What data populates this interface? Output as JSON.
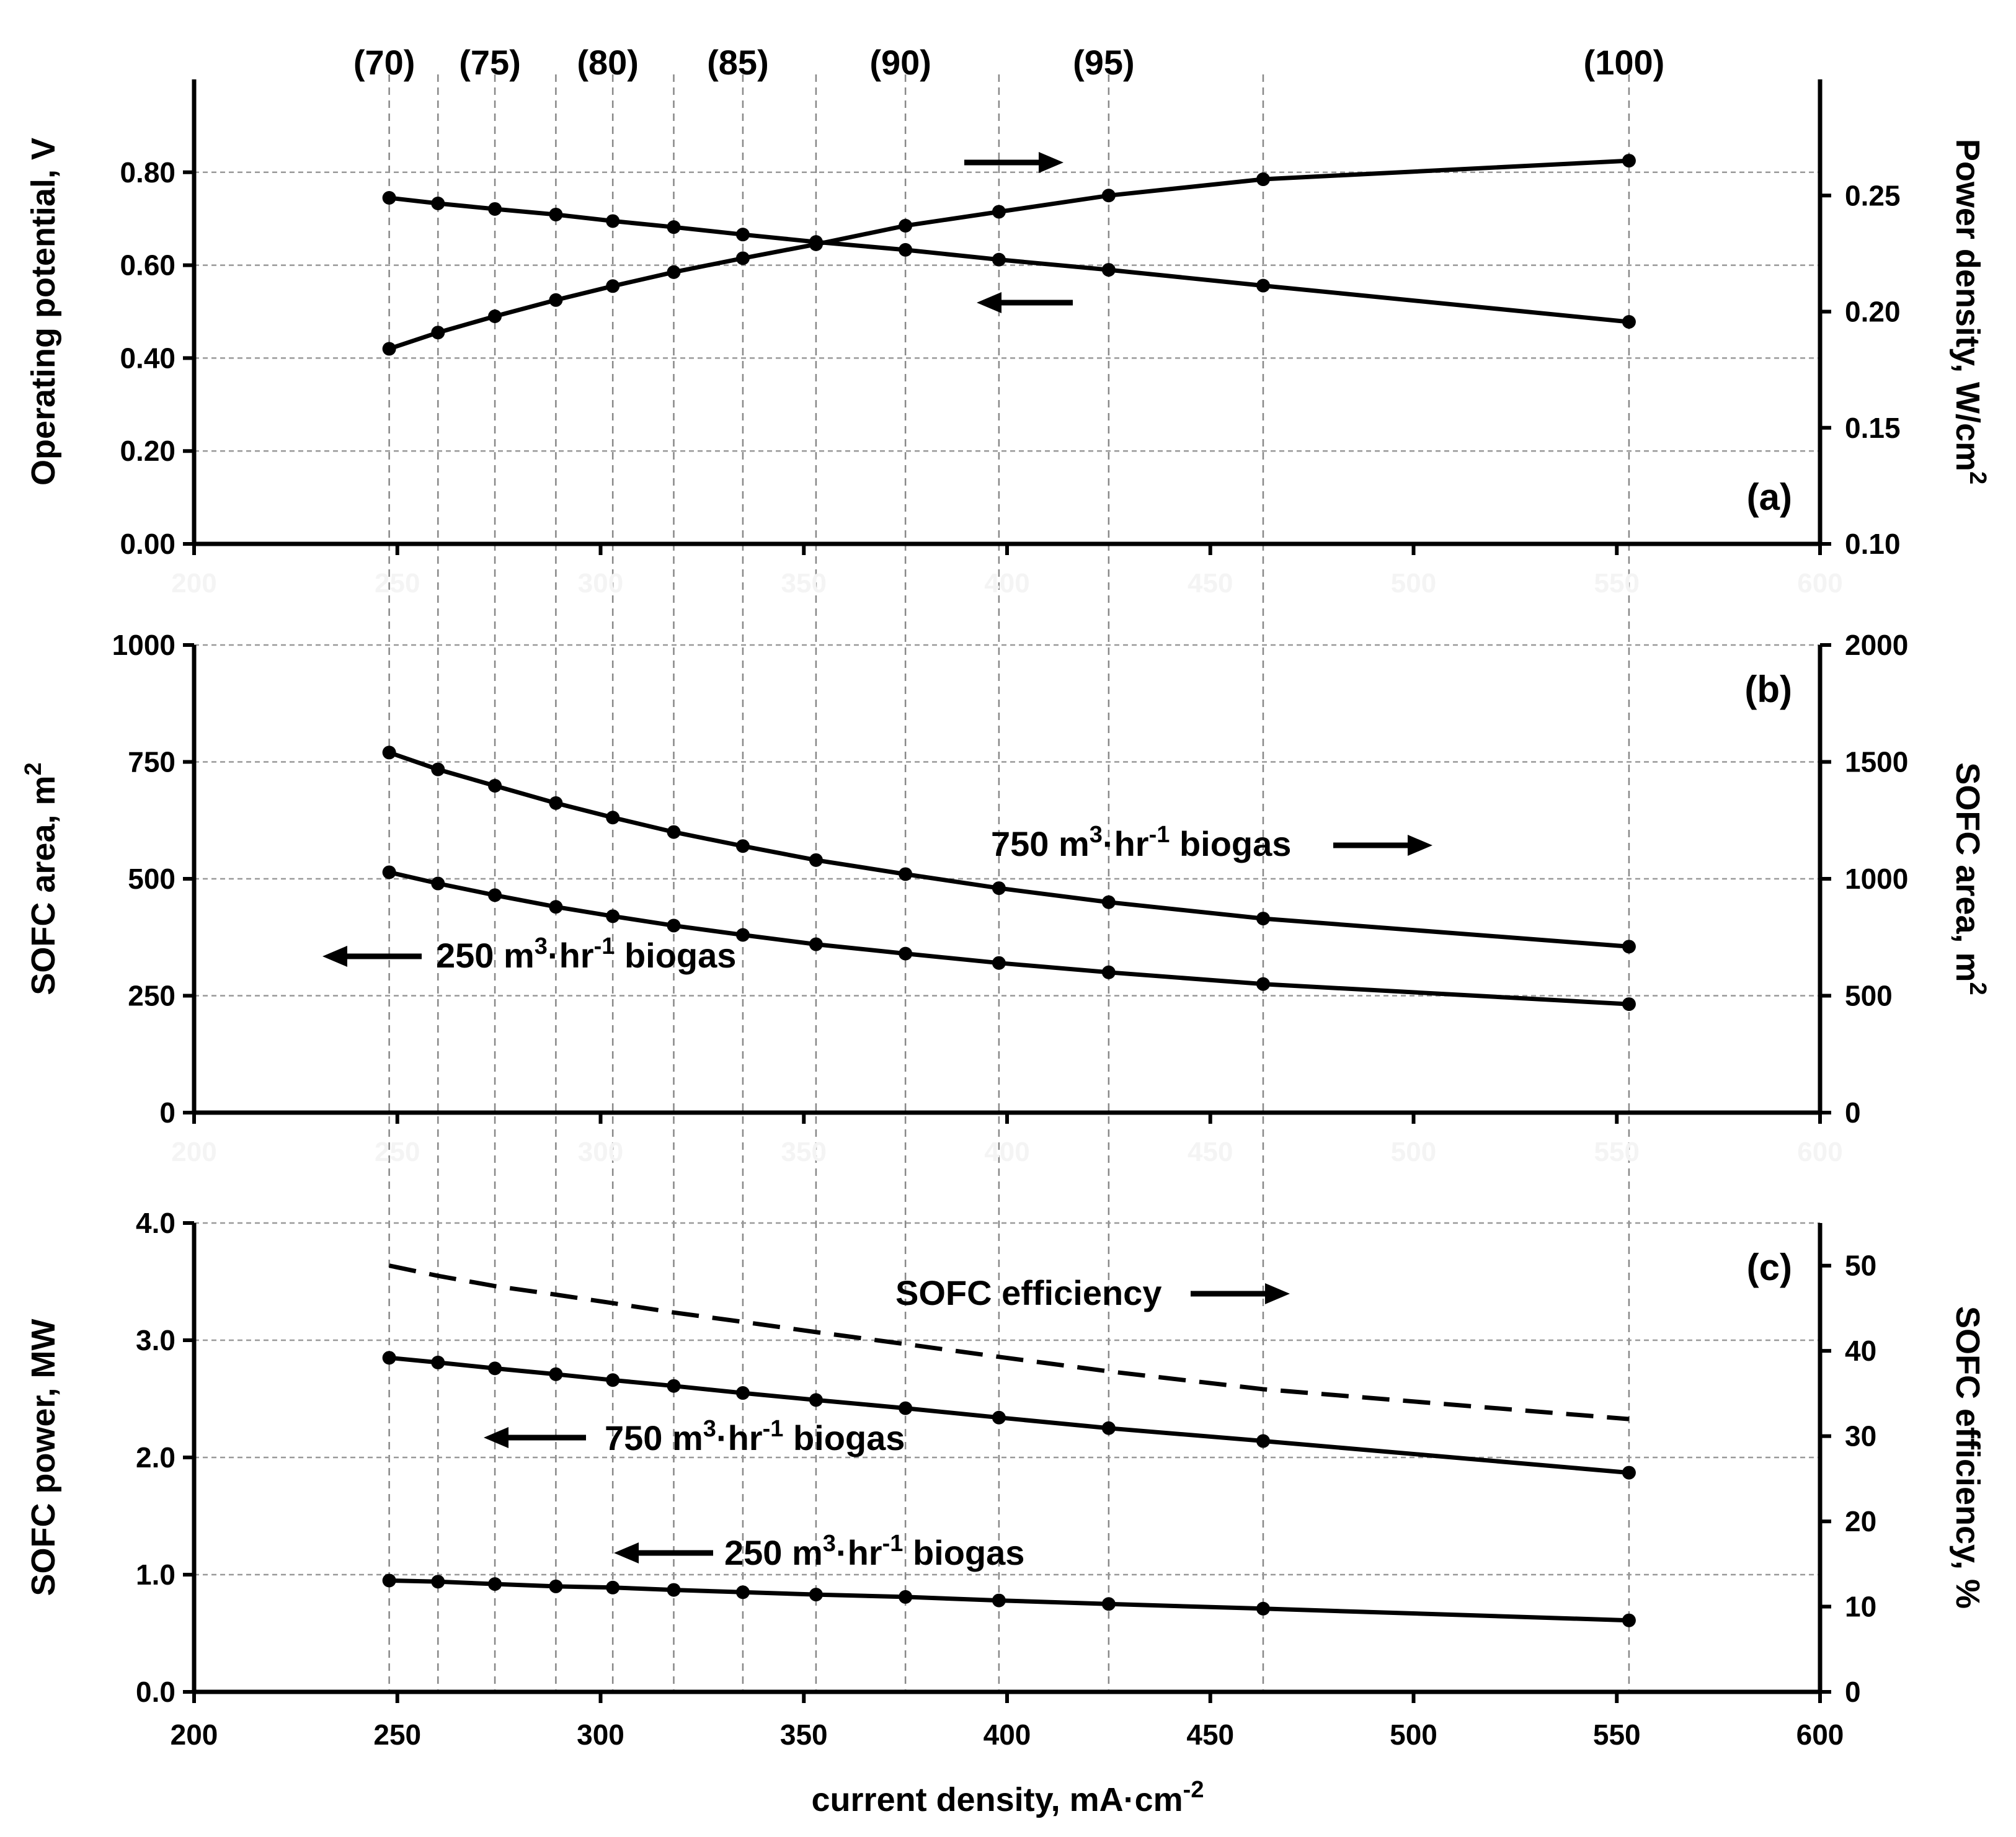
{
  "chart_data": {
    "type": "line",
    "xlabel": "current density, mA·cm",
    "xlabel_sup": "-2",
    "xlim": [
      200,
      600
    ],
    "x_ticks": [
      "200",
      "250",
      "300",
      "350",
      "400",
      "450",
      "500",
      "550",
      "600"
    ],
    "x": [
      248,
      260,
      274,
      289,
      303,
      318,
      335,
      353,
      375,
      398,
      425,
      463,
      553
    ],
    "top_percent_labels": [
      {
        "label": "(70)",
        "x": 248
      },
      {
        "label": "(75)",
        "x": 274
      },
      {
        "label": "(80)",
        "x": 303
      },
      {
        "label": "(85)",
        "x": 335
      },
      {
        "label": "(90)",
        "x": 375
      },
      {
        "label": "(95)",
        "x": 425
      },
      {
        "label": "(100)",
        "x": 553
      }
    ],
    "panels": [
      {
        "tag": "(a)",
        "left_axis": {
          "label": "Operating potential, V",
          "ylim": [
            0,
            1.0
          ],
          "ticks": [
            "0.00",
            "0.20",
            "0.40",
            "0.60",
            "0.80"
          ],
          "tick_values": [
            0,
            0.2,
            0.4,
            0.6,
            0.8
          ]
        },
        "right_axis": {
          "label": "Power density, W/cm",
          "label_sup": "2",
          "ylim": [
            0.1,
            0.3
          ],
          "ticks": [
            "0.10",
            "0.15",
            "0.20",
            "0.25"
          ],
          "tick_values": [
            0.1,
            0.15,
            0.2,
            0.25
          ]
        },
        "series": [
          {
            "name": "Operating potential",
            "axis": "left",
            "markers": true,
            "dashed": false,
            "values": [
              0.745,
              0.733,
              0.721,
              0.709,
              0.695,
              0.682,
              0.666,
              0.65,
              0.633,
              0.612,
              0.59,
              0.556,
              0.478
            ]
          },
          {
            "name": "Power density",
            "axis": "right",
            "markers": true,
            "dashed": false,
            "values": [
              0.184,
              0.191,
              0.198,
              0.205,
              0.211,
              0.217,
              0.223,
              0.229,
              0.237,
              0.243,
              0.25,
              0.257,
              0.265
            ]
          }
        ],
        "annotations": []
      },
      {
        "tag": "(b)",
        "left_axis": {
          "label": "SOFC area, m",
          "label_sup": "2",
          "ylim": [
            0,
            1000
          ],
          "ticks": [
            "0",
            "250",
            "500",
            "750",
            "1000"
          ],
          "tick_values": [
            0,
            250,
            500,
            750,
            1000
          ]
        },
        "right_axis": {
          "label": "SOFC area, m",
          "label_sup": "2",
          "ylim": [
            0,
            2000
          ],
          "ticks": [
            "0",
            "500",
            "1000",
            "1500",
            "2000"
          ],
          "tick_values": [
            0,
            500,
            1000,
            1500,
            2000
          ]
        },
        "series": [
          {
            "name": "750 m3·hr-1 biogas",
            "axis": "right",
            "markers": true,
            "dashed": false,
            "values": [
              1540,
              1468,
              1398,
              1324,
              1262,
              1200,
              1140,
              1080,
              1020,
              960,
              900,
              830,
              710
            ]
          },
          {
            "name": "250 m3·hr-1 biogas",
            "axis": "left",
            "markers": true,
            "dashed": false,
            "values": [
              514,
              490,
              465,
              440,
              420,
              400,
              380,
              360,
              340,
              320,
              300,
              275,
              232
            ]
          }
        ],
        "annotations": [
          {
            "text": "750 m",
            "sup1": "3",
            "mid": "·hr",
            "sup2": "-1",
            "tail": " biogas",
            "arrow": "right"
          },
          {
            "text": "250 m",
            "sup1": "3",
            "mid": "·hr",
            "sup2": "-1",
            "tail": " biogas",
            "arrow": "left"
          }
        ]
      },
      {
        "tag": "(c)",
        "left_axis": {
          "label": "SOFC power, MW",
          "ylim": [
            0,
            4.0
          ],
          "ticks": [
            "0.0",
            "1.0",
            "2.0",
            "3.0",
            "4.0"
          ],
          "tick_values": [
            0,
            1,
            2,
            3,
            4
          ]
        },
        "right_axis": {
          "label": "SOFC efficiency, %",
          "ylim": [
            0,
            55
          ],
          "ticks": [
            "0",
            "10",
            "20",
            "30",
            "40",
            "50"
          ],
          "tick_values": [
            0,
            10,
            20,
            30,
            40,
            50
          ]
        },
        "series": [
          {
            "name": "SOFC efficiency",
            "axis": "right",
            "markers": false,
            "dashed": true,
            "values": [
              50.0,
              48.8,
              47.6,
              46.6,
              45.6,
              44.5,
              43.4,
              42.2,
              40.8,
              39.3,
              37.6,
              35.5,
              32.0
            ]
          },
          {
            "name": "750 m3·hr-1 biogas",
            "axis": "left",
            "markers": true,
            "dashed": false,
            "values": [
              2.85,
              2.81,
              2.76,
              2.71,
              2.66,
              2.61,
              2.55,
              2.49,
              2.42,
              2.34,
              2.25,
              2.14,
              1.87
            ]
          },
          {
            "name": "250 m3·hr-1 biogas",
            "axis": "left",
            "markers": true,
            "dashed": false,
            "values": [
              0.95,
              0.94,
              0.92,
              0.9,
              0.89,
              0.87,
              0.85,
              0.83,
              0.81,
              0.78,
              0.75,
              0.71,
              0.61
            ]
          }
        ],
        "annotations": [
          {
            "text": "SOFC efficiency",
            "arrow": "right"
          },
          {
            "text": "750 m",
            "sup1": "3",
            "mid": "·hr",
            "sup2": "-1",
            "tail": " biogas",
            "arrow": "left"
          },
          {
            "text": "250 m",
            "sup1": "3",
            "mid": "·hr",
            "sup2": "-1",
            "tail": " biogas",
            "arrow": "left"
          }
        ]
      }
    ]
  }
}
